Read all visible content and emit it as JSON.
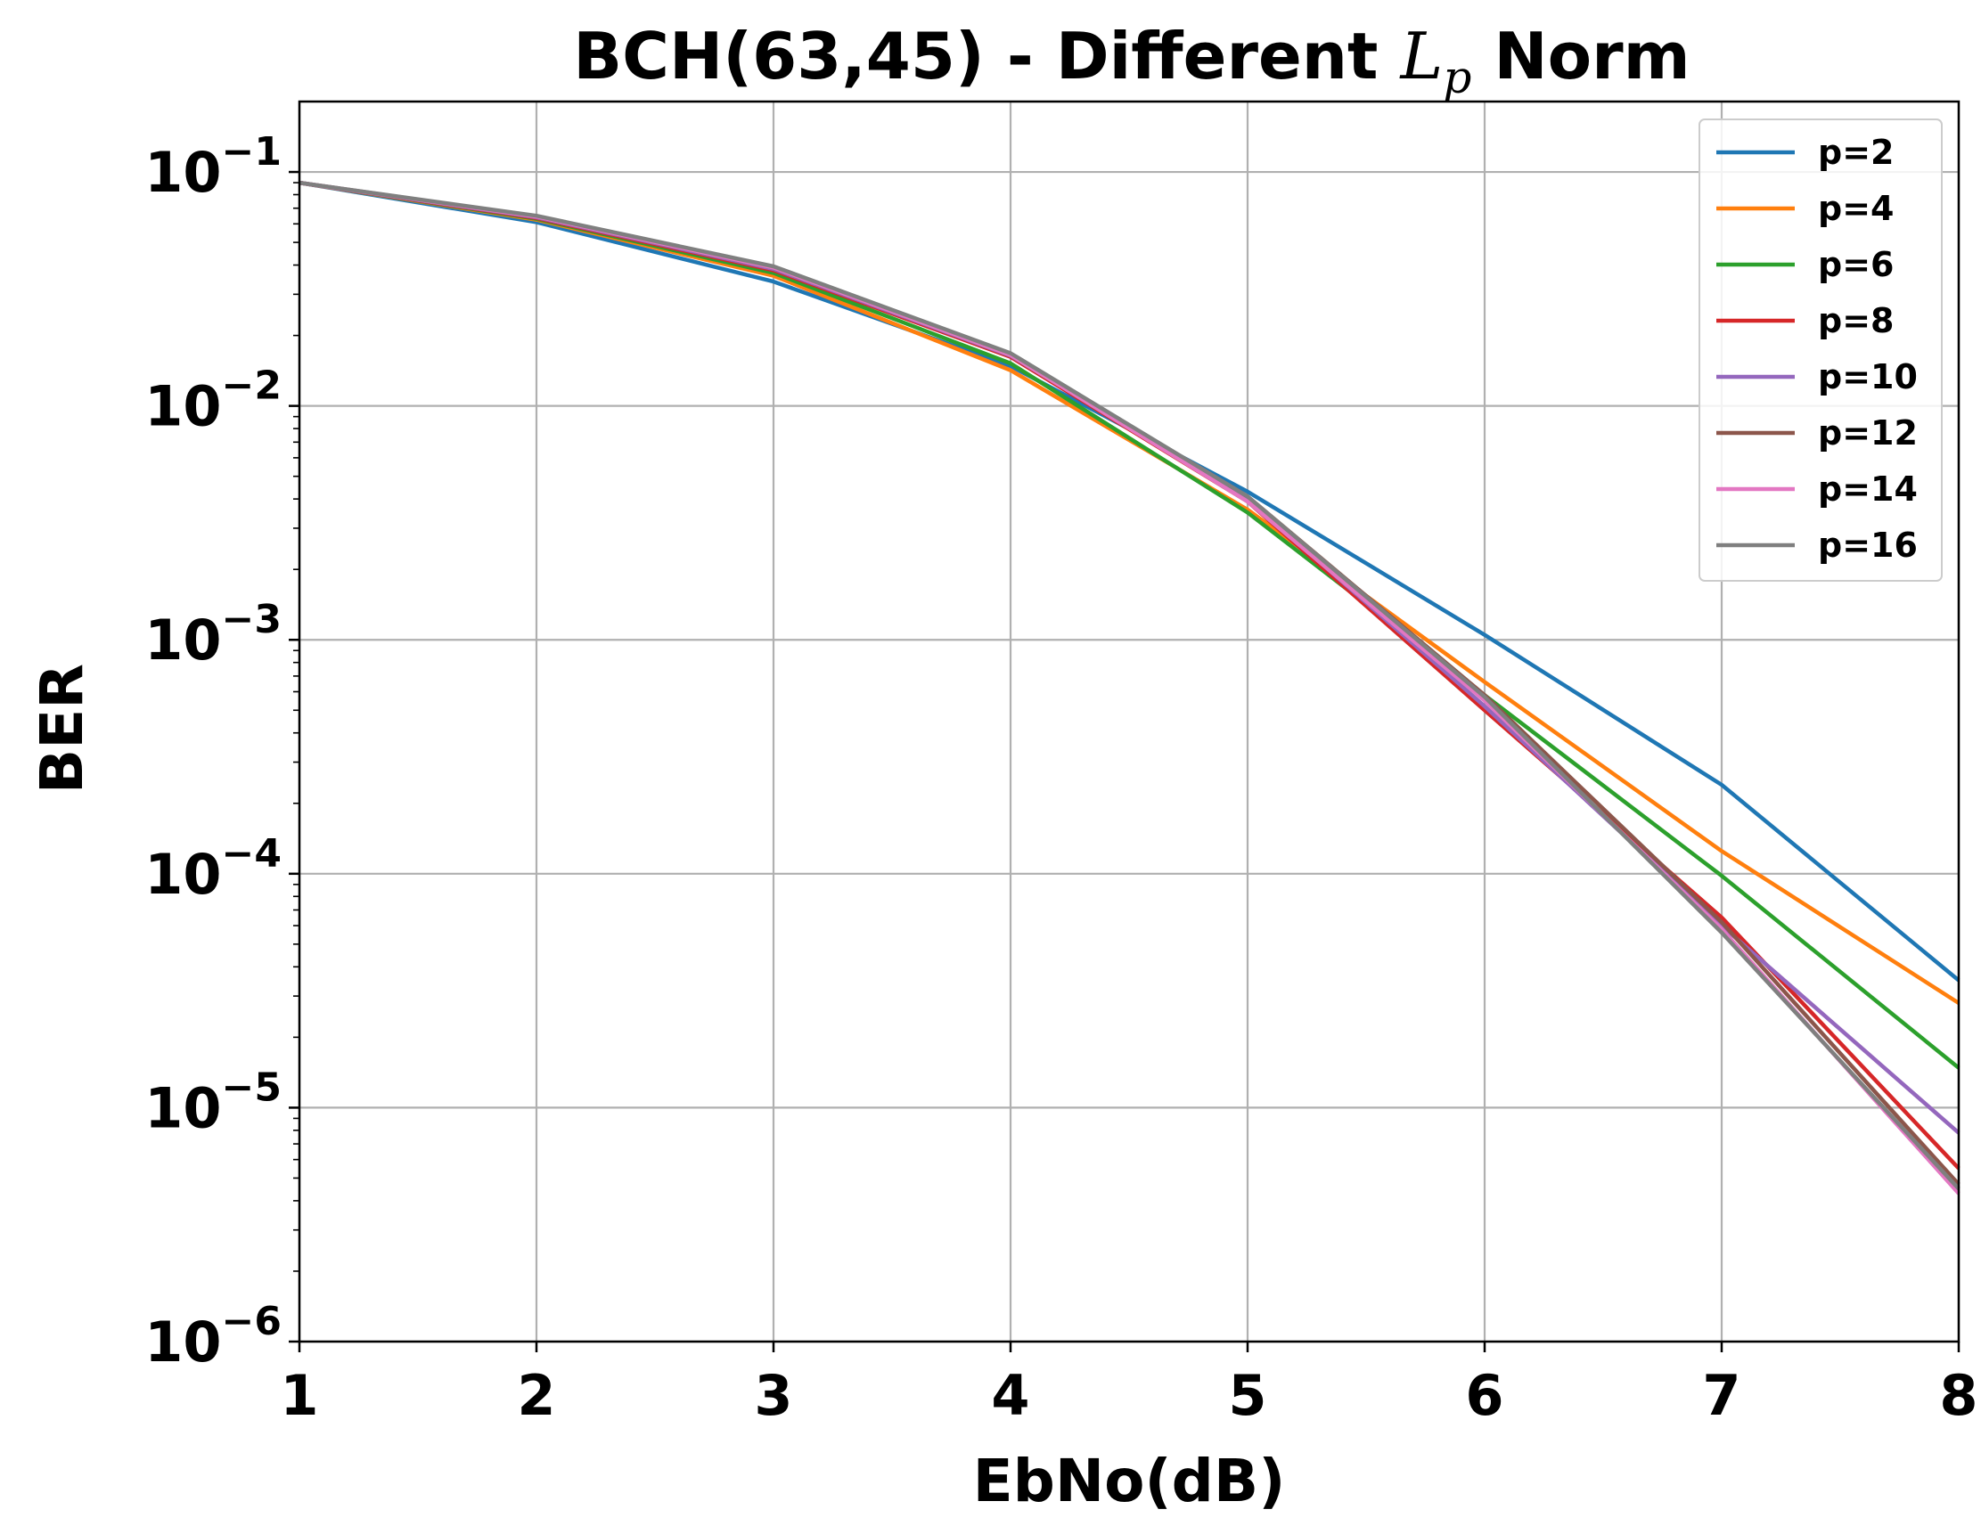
{
  "chart_data": {
    "type": "line",
    "title": {
      "prefix": "BCH(63,45) - Different ",
      "symbol": "L",
      "subscript": "p",
      "suffix": " Norm"
    },
    "xlabel": "EbNo(dB)",
    "ylabel": "BER",
    "x_scale": "linear",
    "y_scale": "log",
    "xlim": [
      1,
      8
    ],
    "ylim": [
      1e-06,
      0.2
    ],
    "grid": true,
    "legend_position": "top-right",
    "x": [
      1,
      2,
      3,
      4,
      5,
      6,
      7,
      8
    ],
    "x_ticks": [
      1,
      2,
      3,
      4,
      5,
      6,
      7,
      8
    ],
    "x_tick_labels": [
      "1",
      "2",
      "3",
      "4",
      "5",
      "6",
      "7",
      "8"
    ],
    "y_ticks": [
      {
        "value": 0.1,
        "base": "10",
        "exp": "−1"
      },
      {
        "value": 0.01,
        "base": "10",
        "exp": "−2"
      },
      {
        "value": 0.001,
        "base": "10",
        "exp": "−3"
      },
      {
        "value": 0.0001,
        "base": "10",
        "exp": "−4"
      },
      {
        "value": 1e-05,
        "base": "10",
        "exp": "−5"
      },
      {
        "value": 1e-06,
        "base": "10",
        "exp": "−6"
      }
    ],
    "series": [
      {
        "name": "p=2",
        "color": "#1f77b4",
        "values": [
          0.09,
          0.061,
          0.034,
          0.0148,
          0.0043,
          0.00105,
          0.00024,
          3.5e-05
        ]
      },
      {
        "name": "p=4",
        "color": "#ff7f0e",
        "values": [
          0.09,
          0.0625,
          0.036,
          0.0142,
          0.0036,
          0.00066,
          0.000125,
          2.8e-05
        ]
      },
      {
        "name": "p=6",
        "color": "#2ca02c",
        "values": [
          0.09,
          0.063,
          0.037,
          0.0152,
          0.0035,
          0.00058,
          9.8e-05,
          1.48e-05
        ]
      },
      {
        "name": "p=8",
        "color": "#d62728",
        "values": [
          0.09,
          0.0635,
          0.038,
          0.0162,
          0.0039,
          0.0005,
          6.5e-05,
          5.5e-06
        ]
      },
      {
        "name": "p=10",
        "color": "#9467bd",
        "values": [
          0.09,
          0.064,
          0.0385,
          0.0164,
          0.004,
          0.00052,
          6e-05,
          7.8e-06
        ]
      },
      {
        "name": "p=12",
        "color": "#8c564b",
        "values": [
          0.09,
          0.0645,
          0.039,
          0.0166,
          0.0041,
          0.00058,
          6.2e-05,
          4.7e-06
        ]
      },
      {
        "name": "p=14",
        "color": "#e377c2",
        "values": [
          0.09,
          0.0645,
          0.039,
          0.0165,
          0.0039,
          0.00055,
          5.8e-05,
          4.3e-06
        ]
      },
      {
        "name": "p=16",
        "color": "#7f7f7f",
        "values": [
          0.09,
          0.065,
          0.0395,
          0.0168,
          0.0041,
          0.00057,
          5.6e-05,
          4.5e-06
        ]
      }
    ]
  }
}
